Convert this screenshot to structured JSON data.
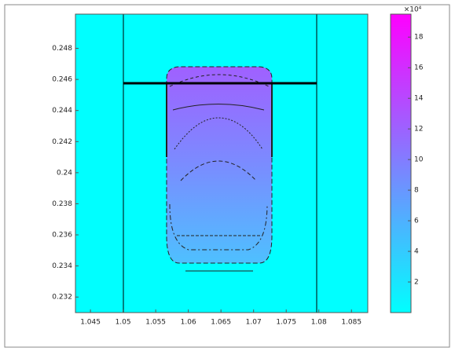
{
  "chart_data": {
    "type": "contour",
    "xlim": [
      1.0427,
      1.0875
    ],
    "xticks": [
      1.045,
      1.05,
      1.055,
      1.06,
      1.065,
      1.07,
      1.075,
      1.08,
      1.085
    ],
    "ylim": [
      0.231,
      0.2502
    ],
    "yticks": [
      0.232,
      0.234,
      0.236,
      0.238,
      0.24,
      0.242,
      0.244,
      0.246,
      0.248
    ],
    "colorbar": {
      "lim": [
        0,
        19.5
      ],
      "ticks": [
        2,
        4,
        6,
        8,
        10,
        12,
        14,
        16,
        18
      ],
      "label": "×10⁴",
      "colors": [
        "#00ffff",
        "#ff00ff"
      ]
    }
  }
}
